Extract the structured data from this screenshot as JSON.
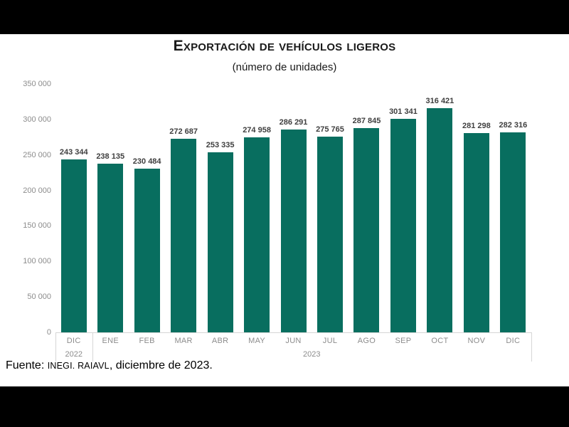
{
  "title": "Exportación de vehículos ligeros",
  "subtitle": "(número de unidades)",
  "source": {
    "prefix": "Fuente: ",
    "caps": "INEGI. RAIAVL",
    "suffix": ", diciembre de 2023."
  },
  "chart_data": {
    "type": "bar",
    "title": "Exportación de vehículos ligeros",
    "subtitle": "(número de unidades)",
    "xlabel": "",
    "ylabel": "",
    "categories": [
      "DIC",
      "ENE",
      "FEB",
      "MAR",
      "ABR",
      "MAY",
      "JUN",
      "JUL",
      "AGO",
      "SEP",
      "OCT",
      "NOV",
      "DIC"
    ],
    "year_groups": [
      {
        "label": "2022",
        "start": 0,
        "span": 1
      },
      {
        "label": "2023",
        "start": 1,
        "span": 12
      }
    ],
    "values": [
      243344,
      238135,
      230484,
      272687,
      253335,
      274958,
      286291,
      275765,
      287845,
      301341,
      316421,
      281298,
      282316
    ],
    "value_labels": [
      "243 344",
      "238 135",
      "230 484",
      "272 687",
      "253 335",
      "274 958",
      "286 291",
      "275 765",
      "287 845",
      "301 341",
      "316 421",
      "281 298",
      "282 316"
    ],
    "ylim": [
      0,
      350000
    ],
    "yticks": [
      0,
      50000,
      100000,
      150000,
      200000,
      250000,
      300000,
      350000
    ],
    "ytick_labels": [
      "0",
      "50 000",
      "100 000",
      "150 000",
      "200 000",
      "250 000",
      "300 000",
      "350 000"
    ],
    "grid": false,
    "legend": false,
    "colors": {
      "bar": "#086e5f",
      "axis_text": "#8c8c8c",
      "value_label": "#3f3f3f",
      "axis_line": "#d6d6d6",
      "background": "#ffffff",
      "letterbox": "#000000"
    }
  }
}
